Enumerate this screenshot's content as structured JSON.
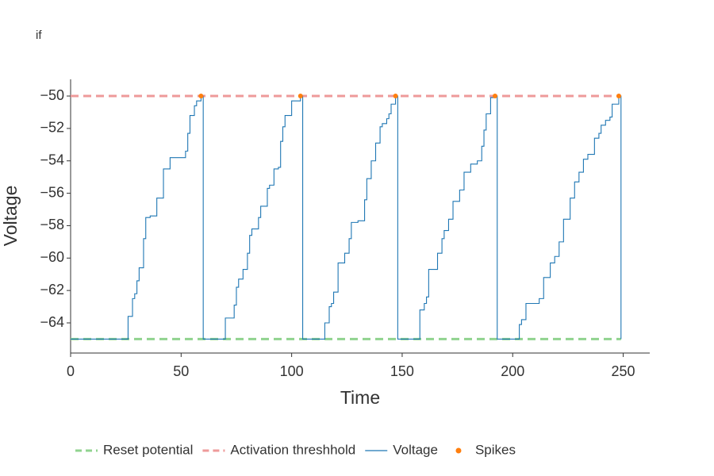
{
  "chart_data": {
    "type": "line",
    "title": "if",
    "x_label": "Time",
    "y_label": "Voltage",
    "line_shape": "hv",
    "grid": false,
    "legend": "bottom",
    "xlim": [
      0,
      262
    ],
    "ylim": [
      -65.86,
      -48.97
    ],
    "xticks": [
      0,
      50,
      100,
      150,
      200,
      250
    ],
    "yticks": [
      {
        "value": -50,
        "label": "−50"
      },
      {
        "value": -52,
        "label": "−52"
      },
      {
        "value": -54,
        "label": "−54"
      },
      {
        "value": -56,
        "label": "−56"
      },
      {
        "value": -58,
        "label": "−58"
      },
      {
        "value": -60,
        "label": "−60"
      },
      {
        "value": -62,
        "label": "−62"
      },
      {
        "value": -64,
        "label": "−64"
      }
    ],
    "series": [
      {
        "name": "Reset potential",
        "color": "#90d38f",
        "mode": "dash",
        "x": [
          0,
          249
        ],
        "values": [
          -65,
          -65
        ]
      },
      {
        "name": "Activation threshhold",
        "color": "#ee9a9a",
        "mode": "dash",
        "x": [
          0,
          249
        ],
        "values": [
          -50,
          -50
        ]
      },
      {
        "name": "Voltage",
        "color": "#1f77b4",
        "mode": "line",
        "x": [
          0,
          26,
          28,
          29,
          30,
          31,
          33,
          34,
          36,
          39,
          42,
          45,
          52,
          53,
          54,
          56,
          57,
          59,
          60,
          70,
          74,
          75,
          76,
          78,
          80,
          81,
          82,
          85,
          86,
          89,
          90,
          92,
          94,
          95,
          96,
          97,
          100,
          104,
          105,
          115,
          117,
          118,
          119,
          121,
          124,
          126,
          127,
          130,
          133,
          134,
          136,
          138,
          140,
          141,
          143,
          144,
          145,
          147,
          148,
          158,
          160,
          161,
          162,
          166,
          168,
          169,
          171,
          173,
          176,
          178,
          181,
          184,
          186,
          187,
          188,
          190,
          192,
          193,
          203,
          204,
          206,
          212,
          214,
          217,
          219,
          221,
          223,
          226,
          228,
          230,
          232,
          234,
          237,
          239,
          240,
          242,
          244,
          245,
          248,
          249
        ],
        "values": [
          -65,
          -63.6,
          -62.5,
          -62.2,
          -61.4,
          -60.6,
          -58.8,
          -57.5,
          -57.4,
          -56.3,
          -54.5,
          -53.8,
          -53.4,
          -52.3,
          -51.2,
          -50.6,
          -50.3,
          -50,
          -65,
          -63.7,
          -62.9,
          -61.8,
          -61.3,
          -60.7,
          -59.7,
          -58.6,
          -58.2,
          -57.5,
          -56.8,
          -55.7,
          -55.5,
          -54.5,
          -54.4,
          -52.8,
          -51.9,
          -51.2,
          -50.3,
          -50,
          -65,
          -64,
          -63,
          -62.8,
          -62.1,
          -60.3,
          -59.7,
          -58.8,
          -57.8,
          -57.7,
          -56.4,
          -55.1,
          -54,
          -52.9,
          -51.9,
          -51.7,
          -51.4,
          -51.1,
          -50.5,
          -50,
          -65,
          -63.2,
          -62.8,
          -62.4,
          -60.7,
          -59.7,
          -58.8,
          -58.3,
          -57.6,
          -56.5,
          -55.8,
          -54.7,
          -54.2,
          -54,
          -53.1,
          -52.1,
          -51.1,
          -50.1,
          -50,
          -65,
          -64.1,
          -63.8,
          -62.8,
          -62.5,
          -61.2,
          -60.3,
          -59.9,
          -59,
          -57.6,
          -56.3,
          -55.3,
          -54.7,
          -53.9,
          -53.6,
          -52.6,
          -52.3,
          -51.8,
          -51.5,
          -51.3,
          -50.5,
          -50,
          -65
        ]
      },
      {
        "name": "Spikes",
        "color": "#ff7f0e",
        "mode": "markers",
        "x": [
          59,
          104,
          147,
          192,
          248
        ],
        "values": [
          -50,
          -50,
          -50,
          -50,
          -50
        ]
      }
    ]
  }
}
